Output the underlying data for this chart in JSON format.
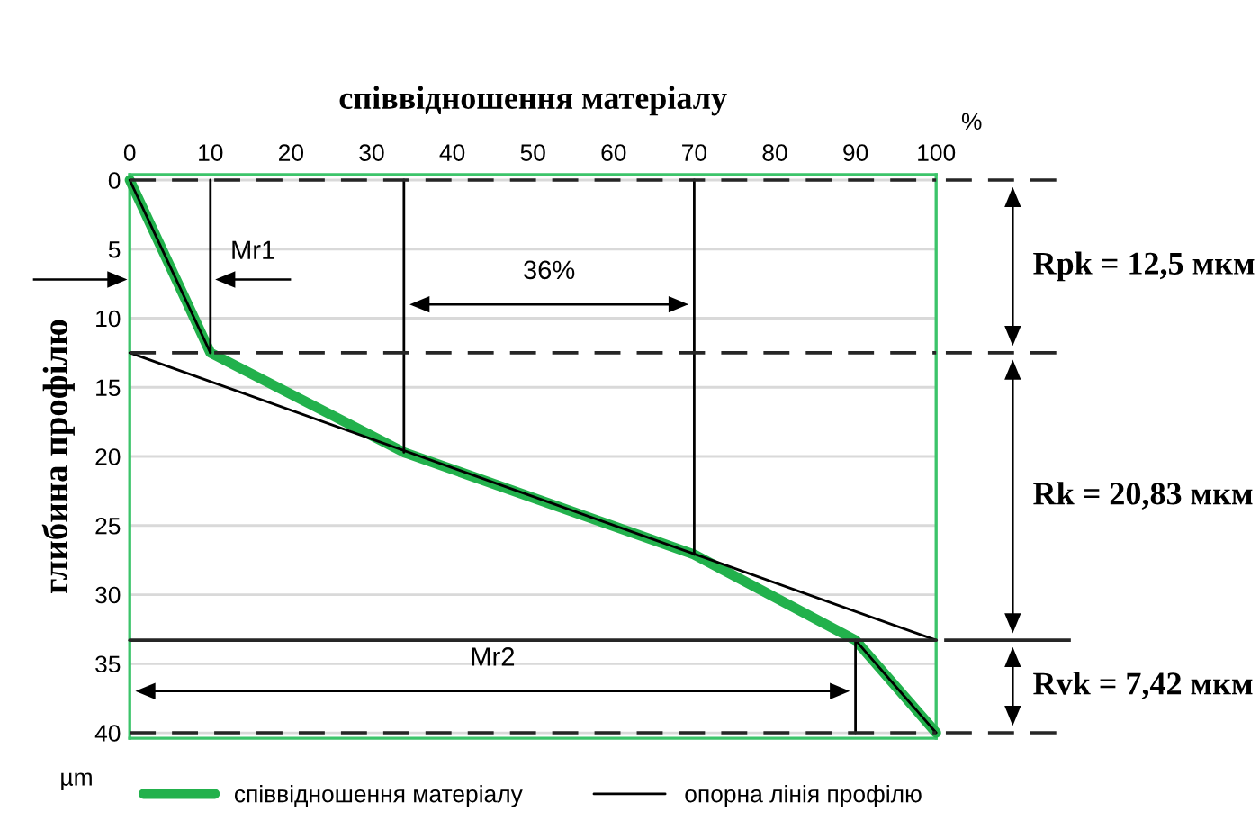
{
  "chart_data": {
    "type": "line",
    "xlabel": "співвідношення матеріалу",
    "ylabel": "глибина профілю",
    "xlim": [
      0,
      100
    ],
    "xticks": [
      0,
      10,
      20,
      30,
      40,
      50,
      60,
      70,
      80,
      90,
      100
    ],
    "ylim": [
      40.4,
      -0.4
    ],
    "yticks": [
      0,
      5,
      10,
      15,
      20,
      25,
      30,
      35,
      40
    ],
    "grid": "y",
    "legend": "bottom",
    "series": [
      {
        "name": "співвідношення матеріалу",
        "color": "#22b14c",
        "x": [
          0,
          10,
          34,
          70,
          90,
          100
        ],
        "values": [
          0,
          12.5,
          19.7,
          27.1,
          33.3,
          40
        ]
      },
      {
        "name": "опорна лінія профілю",
        "color": "#000000",
        "x": [
          0,
          100
        ],
        "values": [
          12.5,
          33.3
        ]
      },
      {
        "color": "#000000",
        "x": [
          10,
          10
        ],
        "values": [
          0,
          12.5
        ]
      },
      {
        "color": "#000000",
        "x": [
          34,
          34
        ],
        "values": [
          0,
          19.7
        ]
      },
      {
        "color": "#000000",
        "x": [
          70,
          70
        ],
        "values": [
          0,
          27.1
        ]
      },
      {
        "color": "#000000",
        "x": [
          90,
          90
        ],
        "values": [
          33.3,
          40
        ]
      },
      {
        "color": "#000000",
        "x": [
          0,
          10
        ],
        "values": [
          0,
          12.5
        ]
      },
      {
        "color": "#000000",
        "x": [
          90,
          100
        ],
        "values": [
          33.3,
          40
        ]
      },
      {
        "color": "#262626",
        "line_style": "dashed",
        "x": [
          0,
          100
        ],
        "values": [
          0,
          0
        ]
      },
      {
        "color": "#262626",
        "line_style": "dashed",
        "x": [
          0,
          100
        ],
        "values": [
          12.5,
          12.5
        ]
      },
      {
        "color": "#262626",
        "line_style": "solid",
        "x": [
          0,
          100
        ],
        "values": [
          33.3,
          33.3
        ]
      },
      {
        "color": "#262626",
        "line_style": "dashed",
        "x": [
          0,
          100
        ],
        "values": [
          40,
          40
        ]
      }
    ],
    "annotations": [
      {
        "text": "Mr1",
        "x": 10,
        "y": 7.2
      },
      "36%",
      "Mr2",
      "Rpk = 12,5 мкм",
      "Rk = 20,83 мкм",
      "Rvk = 7,42 мкм",
      "%",
      "µm"
    ]
  }
}
